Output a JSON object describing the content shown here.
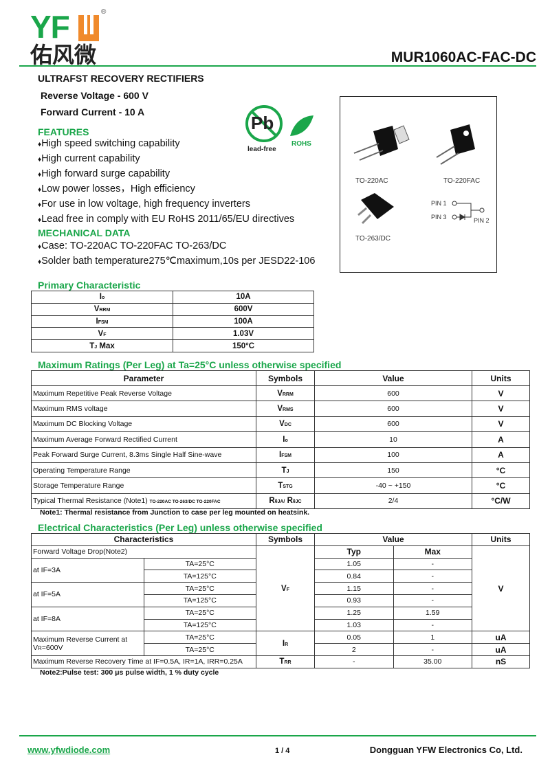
{
  "header": {
    "logo_latin": "YFW",
    "logo_cn": "佑风微",
    "registered": "®",
    "part_number": "MUR1060AC-FAC-DC"
  },
  "intro": {
    "title": "ULTRAFST RECOVERY RECTIFIERS",
    "reverse_voltage": "Reverse Voltage - 600 V",
    "forward_current": "Forward Current - 10 A"
  },
  "rohs": {
    "pb": "Pb",
    "lead_free": "lead-free",
    "rohs": "ROHS"
  },
  "features": {
    "title": "FEATURES",
    "bullet": "♦",
    "items": [
      "High speed switching capability",
      "High current capability",
      "High forward surge capability",
      "Low power losses，High efficiency",
      "For use in low voltage, high frequency inverters",
      "Lead free in comply with EU RoHS 2011/65/EU directives"
    ]
  },
  "mechanical": {
    "title": "MECHANICAL DATA",
    "items": [
      "Case: TO-220AC TO-220FAC TO-263/DC",
      "Solder bath temperature275℃maximum,10s per JESD22-106"
    ]
  },
  "packages": {
    "labels": [
      "TO-220AC",
      "TO-220FAC",
      "TO-263/DC"
    ],
    "pins": [
      "PIN 1",
      "PIN 3",
      "PIN 2"
    ]
  },
  "primary": {
    "title": "Primary Characteristic",
    "rows": [
      {
        "s": "I",
        "sub": "o",
        "v": "10A"
      },
      {
        "s": "V",
        "sub": "RRM",
        "v": "600V"
      },
      {
        "s": "I",
        "sub": "FSM",
        "v": "100A"
      },
      {
        "s": "V",
        "sub": "F",
        "v": "1.03V"
      },
      {
        "s": "T",
        "sub": "J",
        "extra": " Max",
        "v": "150°C"
      }
    ]
  },
  "ratings": {
    "title": "Maximum Ratings (Per Leg) at Ta=25°C unless otherwise specified",
    "headers": [
      "Parameter",
      "Symbols",
      "Value",
      "Units"
    ],
    "rows": [
      {
        "p": "Maximum Repetitive Peak Reverse Voltage",
        "s": "V",
        "sub": "RRM",
        "v": "600",
        "u": "V"
      },
      {
        "p": "Maximum RMS voltage",
        "s": "V",
        "sub": "RMS",
        "v": "600",
        "u": "V"
      },
      {
        "p": "Maximum DC Blocking Voltage",
        "s": "V",
        "sub": "DC",
        "v": "600",
        "u": "V"
      },
      {
        "p": "Maximum Average Forward Rectified Current",
        "s": "I",
        "sub": "o",
        "v": "10",
        "u": "A"
      },
      {
        "p": "Peak Forward Surge Current, 8.3ms Single Half Sine-wave",
        "s": "I",
        "sub": "FSM",
        "v": "100",
        "u": "A"
      },
      {
        "p": "Operating Temperature Range",
        "s": "T",
        "sub": "J",
        "v": "150",
        "u": "°C"
      },
      {
        "p": "Storage Temperature Range",
        "s": "T",
        "sub": "STG",
        "v": "-40 ~ +150",
        "u": "°C"
      },
      {
        "p": "Typical Thermal Resistance (Note1)",
        "small": "TO-220AC TO-263/DC TO-220FAC",
        "s": "R",
        "sub": "θJA/",
        "s2": " R",
        "sub2": "θJC",
        "v": "2/4",
        "u": "°C/W"
      }
    ],
    "note": "Note1: Thermal resistance from Junction to case per leg mounted on heatsink."
  },
  "electrical": {
    "title": "Electrical Characteristics (Per Leg) unless otherwise specified",
    "headers": [
      "Characteristics",
      "Symbols",
      "Value",
      "Units"
    ],
    "sub_headers": [
      "Typ",
      "Max"
    ],
    "vf_label": "Forward Voltage Drop(Note2)",
    "vf_groups": [
      {
        "label": "at IF=3A",
        "rows": [
          [
            "TA=25°C",
            "1.05",
            "-"
          ],
          [
            "TA=125°C",
            "0.84",
            "-"
          ]
        ]
      },
      {
        "label": "at IF=5A",
        "rows": [
          [
            "TA=25°C",
            "1.15",
            "-"
          ],
          [
            "TA=125°C",
            "0.93",
            "-"
          ]
        ]
      },
      {
        "label": "at IF=8A",
        "rows": [
          [
            "TA=25°C",
            "1.25",
            "1.59"
          ],
          [
            "TA=125°C",
            "1.03",
            "-"
          ]
        ]
      }
    ],
    "vf_symbol": {
      "s": "V",
      "sub": "F"
    },
    "vf_unit": "V",
    "ir_label": "Maximum Reverse Current at V",
    "ir_label_sub": "R",
    "ir_label_end": "=600V",
    "ir_symbol": {
      "s": "I",
      "sub": "R"
    },
    "ir_rows": [
      [
        "TA=25°C",
        "0.05",
        "1",
        "uA"
      ],
      [
        "TA=25°C",
        "2",
        "-",
        "uA"
      ]
    ],
    "trr": {
      "label": "Maximum Reverse Recovery Time at IF=0.5A, IR=1A, IRR=0.25A",
      "s": "T",
      "sub": "RR",
      "typ": "-",
      "max": "35.00",
      "u": "nS"
    },
    "note": "Note2:Pulse test: 300 μs pulse width, 1 % duty cycle"
  },
  "footer": {
    "website": "www.yfwdiode.com",
    "page": "1 / 4",
    "company": "Dongguan YFW Electronics Co, Ltd."
  },
  "colors": {
    "green": "#1aa64a",
    "orange": "#f08a2c"
  }
}
